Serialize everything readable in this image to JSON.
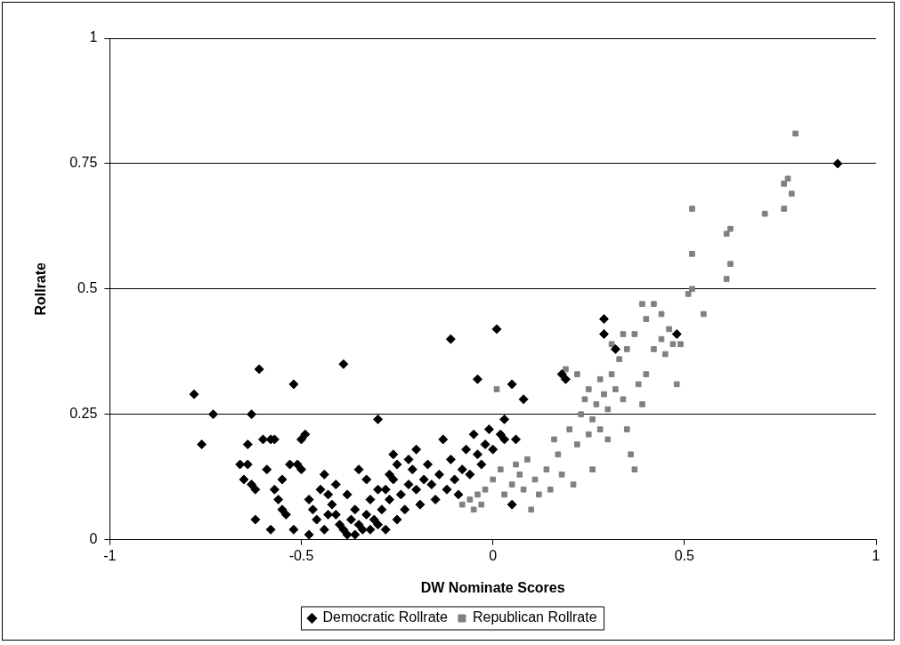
{
  "chart_data": {
    "type": "scatter",
    "xlabel": "DW Nominate Scores",
    "ylabel": "Rollrate",
    "xlim": [
      -1,
      1
    ],
    "xticks": [
      -1,
      -0.5,
      0,
      0.5,
      1
    ],
    "ylim": [
      0,
      1
    ],
    "yticks": [
      0,
      0.25,
      0.5,
      0.75,
      1
    ],
    "grid": "y",
    "legend": "bottom",
    "series": [
      {
        "name": "Democratic Rollrate",
        "color": "#000000",
        "marker": "diamond",
        "x": [
          -0.78,
          -0.76,
          -0.73,
          -0.63,
          -0.61,
          -0.57,
          -0.52,
          -0.39,
          -0.3,
          -0.11,
          0.01,
          -0.04,
          0.08,
          0.05,
          0.03,
          0.29,
          0.29,
          0.32,
          0.48,
          0.9,
          0.18,
          0.19,
          -0.66,
          -0.64,
          -0.65,
          -0.63,
          -0.62,
          -0.64,
          -0.6,
          -0.58,
          -0.59,
          -0.57,
          -0.56,
          -0.55,
          -0.54,
          -0.55,
          -0.53,
          -0.51,
          -0.5,
          -0.49,
          -0.5,
          -0.48,
          -0.47,
          -0.46,
          -0.45,
          -0.44,
          -0.43,
          -0.42,
          -0.41,
          -0.4,
          -0.39,
          -0.38,
          -0.37,
          -0.36,
          -0.35,
          -0.34,
          -0.33,
          -0.32,
          -0.31,
          -0.3,
          -0.29,
          -0.28,
          -0.27,
          -0.26,
          -0.25,
          -0.24,
          -0.23,
          -0.22,
          -0.21,
          -0.2,
          -0.19,
          -0.18,
          -0.17,
          -0.16,
          -0.15,
          -0.14,
          -0.13,
          -0.12,
          -0.11,
          -0.1,
          -0.09,
          -0.08,
          -0.07,
          -0.06,
          -0.05,
          -0.04,
          -0.03,
          -0.02,
          -0.01,
          0,
          0.02,
          0.03,
          0.05,
          0.06,
          -0.62,
          -0.58,
          -0.52,
          -0.48,
          -0.44,
          -0.35,
          -0.33,
          -0.3,
          -0.38,
          -0.43,
          -0.28,
          -0.25,
          -0.26,
          -0.22,
          -0.2,
          -0.27,
          -0.32,
          -0.36,
          -0.41
        ],
        "values": [
          0.29,
          0.19,
          0.25,
          0.25,
          0.34,
          0.2,
          0.31,
          0.35,
          0.24,
          0.4,
          0.42,
          0.32,
          0.28,
          0.31,
          0.24,
          0.44,
          0.41,
          0.38,
          0.41,
          0.75,
          0.33,
          0.32,
          0.15,
          0.15,
          0.12,
          0.11,
          0.1,
          0.19,
          0.2,
          0.2,
          0.14,
          0.1,
          0.08,
          0.06,
          0.05,
          0.12,
          0.15,
          0.15,
          0.2,
          0.21,
          0.14,
          0.08,
          0.06,
          0.04,
          0.1,
          0.13,
          0.09,
          0.07,
          0.05,
          0.03,
          0.02,
          0.01,
          0.04,
          0.06,
          0.03,
          0.02,
          0.05,
          0.08,
          0.04,
          0.03,
          0.06,
          0.1,
          0.08,
          0.12,
          0.15,
          0.09,
          0.06,
          0.11,
          0.14,
          0.1,
          0.07,
          0.12,
          0.15,
          0.11,
          0.08,
          0.13,
          0.2,
          0.1,
          0.16,
          0.12,
          0.09,
          0.14,
          0.18,
          0.13,
          0.21,
          0.17,
          0.15,
          0.19,
          0.22,
          0.18,
          0.21,
          0.2,
          0.07,
          0.2,
          0.04,
          0.02,
          0.02,
          0.01,
          0.02,
          0.14,
          0.12,
          0.1,
          0.09,
          0.05,
          0.02,
          0.04,
          0.17,
          0.16,
          0.18,
          0.13,
          0.02,
          0.01,
          0.11
        ]
      },
      {
        "name": "Republican Rollrate",
        "color": "#808080",
        "marker": "square",
        "x": [
          -0.08,
          -0.06,
          -0.05,
          -0.04,
          -0.03,
          -0.02,
          0,
          0.01,
          0.02,
          0.03,
          0.05,
          0.06,
          0.07,
          0.08,
          0.09,
          0.1,
          0.11,
          0.12,
          0.14,
          0.15,
          0.16,
          0.17,
          0.18,
          0.19,
          0.2,
          0.21,
          0.22,
          0.23,
          0.24,
          0.25,
          0.25,
          0.26,
          0.27,
          0.28,
          0.28,
          0.29,
          0.3,
          0.31,
          0.32,
          0.33,
          0.34,
          0.35,
          0.36,
          0.37,
          0.38,
          0.39,
          0.4,
          0.22,
          0.26,
          0.3,
          0.31,
          0.34,
          0.42,
          0.44,
          0.45,
          0.46,
          0.47,
          0.49,
          0.79,
          0.76,
          0.77,
          0.78,
          0.76,
          0.71,
          0.61,
          0.62,
          0.62,
          0.61,
          0.52,
          0.52,
          0.52,
          0.51,
          0.55,
          0.48,
          0.44,
          0.42,
          0.39,
          0.4,
          0.37,
          0.35
        ],
        "values": [
          0.07,
          0.08,
          0.06,
          0.09,
          0.07,
          0.1,
          0.12,
          0.3,
          0.14,
          0.09,
          0.11,
          0.15,
          0.13,
          0.1,
          0.16,
          0.06,
          0.12,
          0.09,
          0.14,
          0.1,
          0.2,
          0.17,
          0.13,
          0.34,
          0.22,
          0.11,
          0.19,
          0.25,
          0.28,
          0.21,
          0.3,
          0.24,
          0.27,
          0.32,
          0.22,
          0.29,
          0.26,
          0.33,
          0.3,
          0.36,
          0.28,
          0.22,
          0.17,
          0.14,
          0.31,
          0.27,
          0.33,
          0.33,
          0.14,
          0.2,
          0.39,
          0.41,
          0.38,
          0.4,
          0.37,
          0.42,
          0.39,
          0.39,
          0.81,
          0.71,
          0.72,
          0.69,
          0.66,
          0.65,
          0.61,
          0.62,
          0.55,
          0.52,
          0.66,
          0.57,
          0.5,
          0.49,
          0.45,
          0.31,
          0.45,
          0.47,
          0.47,
          0.44,
          0.41,
          0.38
        ]
      }
    ]
  }
}
